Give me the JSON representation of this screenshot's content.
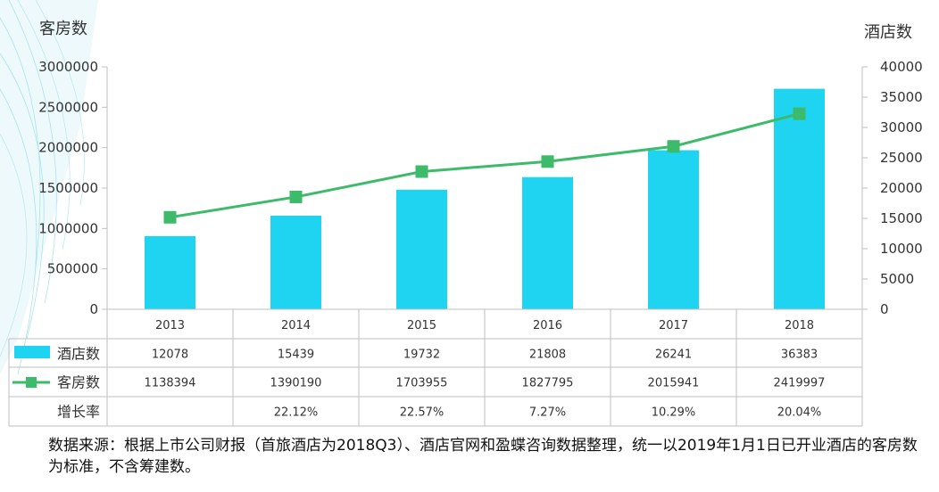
{
  "chart_data": {
    "type": "bar",
    "categories": [
      "2013",
      "2014",
      "2015",
      "2016",
      "2017",
      "2018"
    ],
    "y_left_title": "客房数",
    "y_right_title": "酒店数",
    "y_left_range": [
      0,
      3000000
    ],
    "y_left_ticks": [
      "3000000",
      "2500000",
      "2000000",
      "1500000",
      "1000000",
      "500000",
      "0"
    ],
    "y_right_range": [
      0,
      40000
    ],
    "y_right_ticks": [
      "40000",
      "35000",
      "30000",
      "25000",
      "20000",
      "15000",
      "10000",
      "5000",
      "0"
    ],
    "series": [
      {
        "name": "酒店数",
        "type": "bar",
        "axis": "right",
        "color": "#1ed4f0",
        "values": [
          12078,
          15439,
          19732,
          21808,
          26241,
          36383
        ]
      },
      {
        "name": "客房数",
        "type": "line",
        "axis": "left",
        "color": "#3dba6a",
        "values": [
          1138394,
          1390190,
          1703955,
          1827795,
          2015941,
          2419997
        ]
      }
    ],
    "table": {
      "rows": [
        {
          "label": "酒店数",
          "cells": [
            "12078",
            "15439",
            "19732",
            "21808",
            "26241",
            "36383"
          ]
        },
        {
          "label": "客房数",
          "cells": [
            "1138394",
            "1390190",
            "1703955",
            "1827795",
            "2015941",
            "2419997"
          ]
        },
        {
          "label": "增长率",
          "cells": [
            "",
            "22.12%",
            "22.57%",
            "7.27%",
            "10.29%",
            "20.04%"
          ]
        }
      ]
    },
    "grid": false
  },
  "source_note": "数据来源：根据上市公司财报（首旅酒店为2018Q3）、酒店官网和盈蝶咨询数据整理，统一以2019年1月1日已开业酒店的客房数为标准，不含筹建数。"
}
